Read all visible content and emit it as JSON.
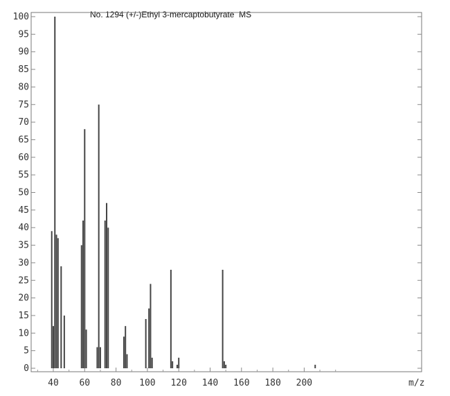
{
  "chart_data": {
    "type": "bar",
    "title": "No. 1294 (+/-)Ethyl 3-mercaptobutyrate  MS",
    "xlabel": "m/z",
    "ylabel": "",
    "xlim": [
      28,
      222
    ],
    "ylim": [
      0,
      100
    ],
    "x_ticks": [
      40,
      60,
      80,
      100,
      120,
      140,
      160,
      180,
      200
    ],
    "y_ticks": [
      0,
      5,
      10,
      15,
      20,
      25,
      30,
      35,
      40,
      45,
      50,
      55,
      60,
      65,
      70,
      75,
      80,
      85,
      90,
      95,
      100
    ],
    "y_tick_labels": [
      "0",
      "5",
      "10",
      "15",
      "20",
      "25",
      "30",
      "35",
      "40",
      "45",
      "50",
      "55",
      "60",
      "65",
      "70",
      "75",
      "80",
      "85",
      "90",
      "95",
      "100"
    ],
    "peaks": [
      {
        "mz": 39,
        "intensity": 39
      },
      {
        "mz": 40,
        "intensity": 12
      },
      {
        "mz": 41,
        "intensity": 100
      },
      {
        "mz": 42,
        "intensity": 38
      },
      {
        "mz": 43,
        "intensity": 37
      },
      {
        "mz": 45,
        "intensity": 29
      },
      {
        "mz": 47,
        "intensity": 15
      },
      {
        "mz": 58,
        "intensity": 35
      },
      {
        "mz": 59,
        "intensity": 42
      },
      {
        "mz": 60,
        "intensity": 68
      },
      {
        "mz": 61,
        "intensity": 11
      },
      {
        "mz": 68,
        "intensity": 6
      },
      {
        "mz": 69,
        "intensity": 75
      },
      {
        "mz": 70,
        "intensity": 6
      },
      {
        "mz": 73,
        "intensity": 42
      },
      {
        "mz": 74,
        "intensity": 47
      },
      {
        "mz": 75,
        "intensity": 40
      },
      {
        "mz": 85,
        "intensity": 9
      },
      {
        "mz": 86,
        "intensity": 12
      },
      {
        "mz": 87,
        "intensity": 4
      },
      {
        "mz": 99,
        "intensity": 14
      },
      {
        "mz": 101,
        "intensity": 17
      },
      {
        "mz": 102,
        "intensity": 24
      },
      {
        "mz": 103,
        "intensity": 3
      },
      {
        "mz": 115,
        "intensity": 28
      },
      {
        "mz": 116,
        "intensity": 2
      },
      {
        "mz": 119,
        "intensity": 1
      },
      {
        "mz": 120,
        "intensity": 3
      },
      {
        "mz": 148,
        "intensity": 28
      },
      {
        "mz": 149,
        "intensity": 2
      },
      {
        "mz": 150,
        "intensity": 1
      },
      {
        "mz": 207,
        "intensity": 1
      }
    ]
  }
}
